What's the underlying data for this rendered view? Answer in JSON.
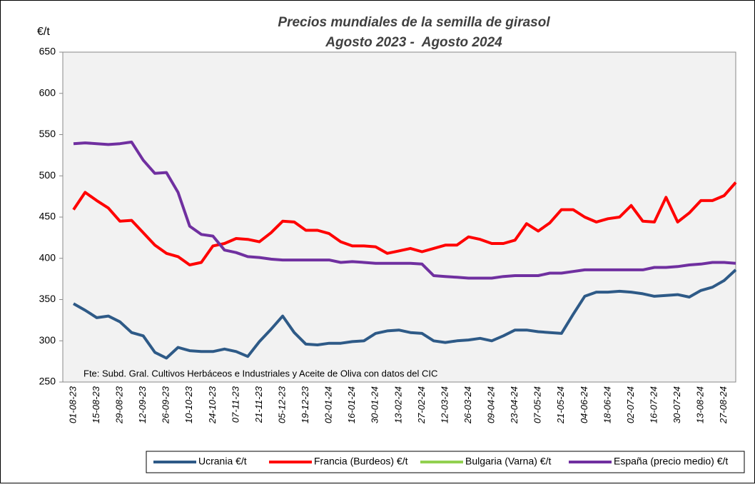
{
  "chart_data": {
    "type": "line",
    "title": "Precios mundiales de la semilla de girasol",
    "subtitle": "Agosto 2023 -  Agosto 2024",
    "y_label": "€/t",
    "annotation": "Fte: Subd. Gral. Cultivos Herbáceos e Industriales y Aceite de Oliva con datos del CIC",
    "categories": [
      "01-08-23",
      null,
      "15-08-23",
      null,
      "29-08-23",
      null,
      "12-09-23",
      null,
      "26-09-23",
      null,
      "10-10-23",
      null,
      "24-10-23",
      null,
      "07-11-23",
      null,
      "21-11-23",
      null,
      "05-12-23",
      null,
      "19-12-23",
      null,
      "02-01-24",
      null,
      "16-01-24",
      null,
      "30-01-24",
      null,
      "13-02-24",
      null,
      "27-02-24",
      null,
      "12-03-24",
      null,
      "26-03-24",
      null,
      "09-04-24",
      null,
      "23-04-24",
      null,
      "07-05-24",
      null,
      "21-05-24",
      null,
      "04-06-24",
      null,
      "18-06-24",
      null,
      "02-07-24",
      null,
      "16-07-24",
      null,
      "30-07-24",
      null,
      "13-08-24",
      null,
      "27-08-24",
      null
    ],
    "series": [
      {
        "name": "Ucrania €/t",
        "color": "#2e5a87",
        "values": [
          345,
          337,
          328,
          330,
          323,
          310,
          306,
          286,
          279,
          292,
          288,
          287,
          287,
          290,
          287,
          281,
          299,
          314,
          330,
          310,
          296,
          295,
          297,
          297,
          299,
          300,
          309,
          312,
          313,
          310,
          309,
          300,
          298,
          300,
          301,
          303,
          300,
          306,
          313,
          313,
          311,
          310,
          309,
          332,
          354,
          359,
          359,
          360,
          359,
          357,
          354,
          355,
          356,
          353,
          361,
          365,
          373,
          386
        ]
      },
      {
        "name": "Francia (Burdeos) €/t",
        "color": "#ff0000",
        "values": [
          459,
          480,
          470,
          461,
          445,
          446,
          431,
          416,
          406,
          402,
          392,
          395,
          415,
          418,
          424,
          423,
          420,
          431,
          445,
          444,
          434,
          434,
          430,
          420,
          415,
          415,
          414,
          406,
          409,
          412,
          408,
          412,
          416,
          416,
          426,
          423,
          418,
          418,
          422,
          442,
          433,
          443,
          459,
          459,
          450,
          444,
          448,
          450,
          464,
          445,
          444,
          474,
          444,
          455,
          470,
          470,
          476,
          492
        ]
      },
      {
        "name": "Bulgaria (Varna) €/t",
        "color": "#92d050",
        "values": [
          null,
          null,
          null,
          null,
          null,
          null,
          null,
          null,
          null,
          null,
          null,
          null,
          null,
          null,
          null,
          null,
          null,
          null,
          null,
          null,
          null,
          null,
          null,
          null,
          null,
          null,
          null,
          null,
          null,
          null,
          null,
          null,
          null,
          null,
          null,
          null,
          null,
          null,
          null,
          null,
          null,
          null,
          null,
          null,
          null,
          null,
          null,
          null,
          null,
          null,
          null,
          null,
          null,
          null,
          null,
          null,
          null,
          null
        ]
      },
      {
        "name": "España (precio medio) €/t",
        "color": "#7030a0",
        "values": [
          539,
          540,
          539,
          538,
          539,
          541,
          519,
          503,
          504,
          480,
          439,
          429,
          427,
          410,
          407,
          402,
          401,
          399,
          398,
          398,
          398,
          398,
          398,
          395,
          396,
          395,
          394,
          394,
          394,
          394,
          393,
          379,
          378,
          377,
          376,
          376,
          376,
          378,
          379,
          379,
          379,
          382,
          382,
          384,
          386,
          386,
          386,
          386,
          386,
          386,
          389,
          389,
          390,
          392,
          393,
          395,
          395,
          394
        ]
      }
    ],
    "ylim": [
      250,
      650
    ],
    "yticks": [
      250,
      300,
      350,
      400,
      450,
      500,
      550,
      600,
      650
    ],
    "grid": false,
    "legend": "bottom"
  }
}
